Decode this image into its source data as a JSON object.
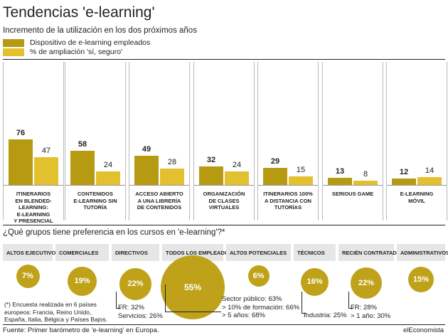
{
  "title": "Tendencias 'e-learning'",
  "subtitle": "Incremento de la utilización en los dos próximos años",
  "colors": {
    "dark": "#b59a12",
    "light": "#e2c02e",
    "circle": "#bfa21a",
    "header_bg": "#e6e6e6"
  },
  "chart_data": {
    "type": "bar",
    "title": "Tendencias 'e-learning'",
    "subtitle": "Incremento de la utilización en los dos próximos años",
    "categories": [
      "Itinerarios en blended-learning: e-learning y presencial",
      "Contenidos e-learning sin tutoría",
      "Acceso abierto a una librería de contenidos",
      "Organización de clases virtuales",
      "Itinerarios 100% a distancia con tutorías",
      "Serious game",
      "E-learning móvil"
    ],
    "series": [
      {
        "name": "Dispositivo de e-learning empleados",
        "values": [
          76,
          58,
          49,
          32,
          29,
          13,
          12
        ]
      },
      {
        "name": "% de ampliación 'sí, seguro'",
        "values": [
          47,
          24,
          28,
          24,
          15,
          8,
          14
        ]
      }
    ],
    "ylim": [
      0,
      100
    ],
    "legend": "top-left",
    "grid": false
  },
  "category_labels": [
    "Itinerarios\nen blended-learning:\ne-learning\ny presencial",
    "Contenidos\ne-learning sin\ntutoría",
    "Acceso abierto\na una librería\nde contenidos",
    "Organización\nde clases\nvirtuales",
    "Itinerarios 100%\na distancia con\ntutorías",
    "Serious game",
    "E-learning\nmóvil"
  ],
  "question": "¿Qué grupos tiene preferencia en los cursos en 'e-learning'?*",
  "groups": [
    {
      "name": "Altos ejecutivos",
      "value": 7,
      "label": "7%"
    },
    {
      "name": "Comerciales",
      "value": 19,
      "label": "19%"
    },
    {
      "name": "Directivos",
      "value": 22,
      "label": "22%"
    },
    {
      "name": "Todos los empleados",
      "value": 55,
      "label": "55%"
    },
    {
      "name": "Altos potenciales",
      "value": 6,
      "label": "6%"
    },
    {
      "name": "Técnicos",
      "value": 16,
      "label": "16%"
    },
    {
      "name": "Recién contratados",
      "value": 22,
      "label": "22%"
    },
    {
      "name": "Administrativos",
      "value": 15,
      "label": "15%"
    }
  ],
  "notes": {
    "directivos": [
      "FR: 32%",
      "Servicios: 26%"
    ],
    "todos": [
      "Sector público: 63%",
      "> 10% de formación: 66%",
      "> 5 años: 68%"
    ],
    "tecnicos": [
      "Industria: 25%"
    ],
    "recien": [
      "FR: 28%",
      "> 1 año: 30%"
    ]
  },
  "footnote": [
    "(*) Encuesta realizada en 6 países",
    "europeos: Francia, Reino Unido,",
    "España, Italia, Bélgica y Países Bajos."
  ],
  "source": "Fuente: Primer barómetro de 'e-learning' en Europa.",
  "brand": "elEconomista"
}
